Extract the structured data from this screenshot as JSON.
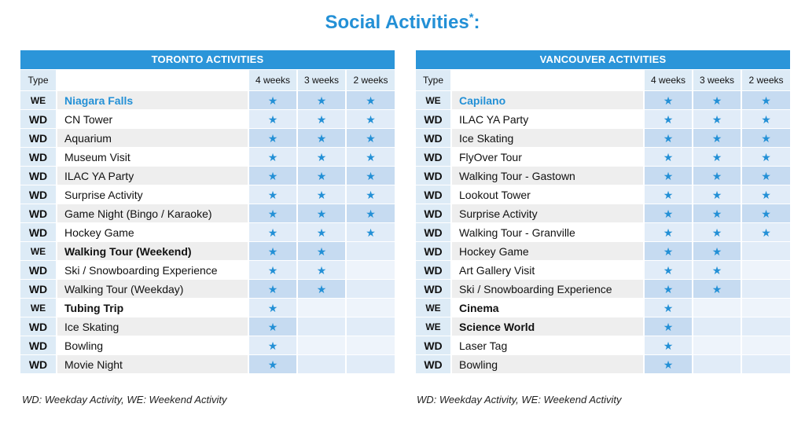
{
  "title": "Social Activities",
  "title_mark": "*",
  "title_suffix": ":",
  "colors": {
    "accent": "#2390d6",
    "banner": "#2b95d9",
    "star_cell": "#c6dbf1",
    "type_cell": "#ddebf6"
  },
  "star_icon": "star-icon",
  "columns": {
    "type": "Type",
    "w4": "4 weeks",
    "w3": "3 weeks",
    "w2": "2 weeks"
  },
  "toronto": {
    "banner": "TORONTO ACTIVITIES",
    "footnote": "WD: Weekday Activity, WE: Weekend Activity",
    "rows": [
      {
        "type": "WE",
        "name": "Niagara Falls",
        "style": "blue",
        "w4": true,
        "w3": true,
        "w2": true
      },
      {
        "type": "WD",
        "name": "CN Tower",
        "style": "normal",
        "w4": true,
        "w3": true,
        "w2": true
      },
      {
        "type": "WD",
        "name": "Aquarium",
        "style": "normal",
        "w4": true,
        "w3": true,
        "w2": true
      },
      {
        "type": "WD",
        "name": "Museum Visit",
        "style": "normal",
        "w4": true,
        "w3": true,
        "w2": true
      },
      {
        "type": "WD",
        "name": "ILAC YA Party",
        "style": "normal",
        "w4": true,
        "w3": true,
        "w2": true
      },
      {
        "type": "WD",
        "name": "Surprise Activity",
        "style": "normal",
        "w4": true,
        "w3": true,
        "w2": true
      },
      {
        "type": "WD",
        "name": "Game Night (Bingo / Karaoke)",
        "style": "normal",
        "w4": true,
        "w3": true,
        "w2": true
      },
      {
        "type": "WD",
        "name": "Hockey Game",
        "style": "normal",
        "w4": true,
        "w3": true,
        "w2": true
      },
      {
        "type": "WE",
        "name": "Walking Tour (Weekend)",
        "style": "bold",
        "w4": true,
        "w3": true,
        "w2": false
      },
      {
        "type": "WD",
        "name": "Ski / Snowboarding Experience",
        "style": "normal",
        "w4": true,
        "w3": true,
        "w2": false
      },
      {
        "type": "WD",
        "name": "Walking Tour (Weekday)",
        "style": "normal",
        "w4": true,
        "w3": true,
        "w2": false
      },
      {
        "type": "WE",
        "name": "Tubing Trip",
        "style": "bold",
        "w4": true,
        "w3": false,
        "w2": false
      },
      {
        "type": "WD",
        "name": "Ice Skating",
        "style": "normal",
        "w4": true,
        "w3": false,
        "w2": false
      },
      {
        "type": "WD",
        "name": "Bowling",
        "style": "normal",
        "w4": true,
        "w3": false,
        "w2": false
      },
      {
        "type": "WD",
        "name": "Movie Night",
        "style": "normal",
        "w4": true,
        "w3": false,
        "w2": false
      }
    ]
  },
  "vancouver": {
    "banner": "VANCOUVER ACTIVITIES",
    "footnote": "WD: Weekday Activity, WE: Weekend Activity",
    "rows": [
      {
        "type": "WE",
        "name": "Capilano",
        "style": "blue",
        "w4": true,
        "w3": true,
        "w2": true
      },
      {
        "type": "WD",
        "name": "ILAC YA Party",
        "style": "normal",
        "w4": true,
        "w3": true,
        "w2": true
      },
      {
        "type": "WD",
        "name": "Ice Skating",
        "style": "normal",
        "w4": true,
        "w3": true,
        "w2": true
      },
      {
        "type": "WD",
        "name": "FlyOver Tour",
        "style": "normal",
        "w4": true,
        "w3": true,
        "w2": true
      },
      {
        "type": "WD",
        "name": "Walking Tour - Gastown",
        "style": "normal",
        "w4": true,
        "w3": true,
        "w2": true
      },
      {
        "type": "WD",
        "name": "Lookout Tower",
        "style": "normal",
        "w4": true,
        "w3": true,
        "w2": true
      },
      {
        "type": "WD",
        "name": "Surprise Activity",
        "style": "normal",
        "w4": true,
        "w3": true,
        "w2": true
      },
      {
        "type": "WD",
        "name": "Walking Tour - Granville",
        "style": "normal",
        "w4": true,
        "w3": true,
        "w2": true
      },
      {
        "type": "WD",
        "name": "Hockey Game",
        "style": "normal",
        "w4": true,
        "w3": true,
        "w2": false
      },
      {
        "type": "WD",
        "name": "Art Gallery Visit",
        "style": "normal",
        "w4": true,
        "w3": true,
        "w2": false
      },
      {
        "type": "WD",
        "name": "Ski / Snowboarding Experience",
        "style": "normal",
        "w4": true,
        "w3": true,
        "w2": false
      },
      {
        "type": "WE",
        "name": "Cinema",
        "style": "bold",
        "w4": true,
        "w3": false,
        "w2": false
      },
      {
        "type": "WE",
        "name": "Science World",
        "style": "bold",
        "w4": true,
        "w3": false,
        "w2": false
      },
      {
        "type": "WD",
        "name": "Laser Tag",
        "style": "normal",
        "w4": true,
        "w3": false,
        "w2": false
      },
      {
        "type": "WD",
        "name": "Bowling",
        "style": "normal",
        "w4": true,
        "w3": false,
        "w2": false
      }
    ]
  }
}
